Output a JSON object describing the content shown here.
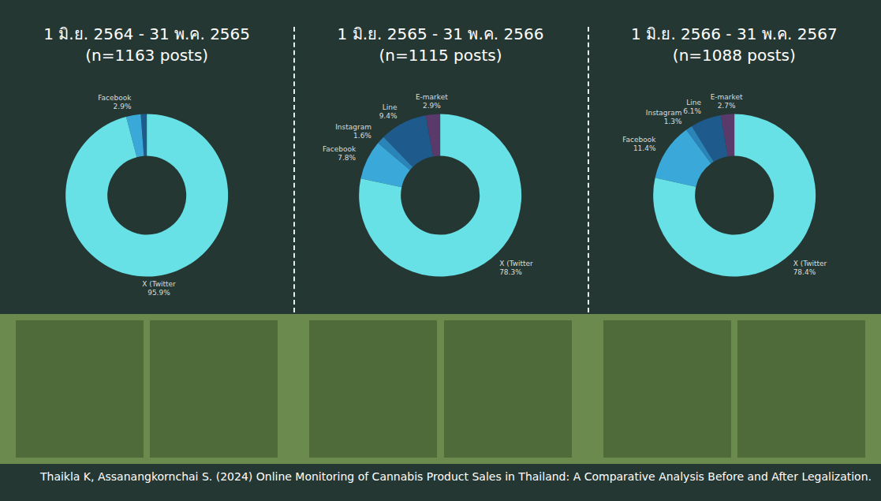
{
  "chart_data": [
    {
      "type": "donut",
      "title": "1 มิ.ย. 2564 - 31 พ.ค. 2565",
      "subtitle": "(n=1163 posts)",
      "categories": [
        null,
        "Facebook",
        "X (Twitter"
      ],
      "values": [
        1.2,
        2.9,
        95.9
      ],
      "value_labels": [
        null,
        "2.9%",
        "95.9%"
      ],
      "colors": [
        "#1f5a8c",
        "#3aa8d8",
        "#67e0e6"
      ],
      "data_labels": true
    },
    {
      "type": "donut",
      "title": "1 มิ.ย. 2565 - 31 พ.ค. 2566",
      "subtitle": "(n=1115 posts)",
      "categories": [
        "E-market",
        "Line",
        "Instagram",
        "Facebook",
        "X (Twitter"
      ],
      "values": [
        2.9,
        9.4,
        1.6,
        7.8,
        78.3
      ],
      "value_labels": [
        "2.9%",
        "9.4%",
        "1.6%",
        "7.8%",
        "78.3%"
      ],
      "colors": [
        "#5a3a6b",
        "#1f5a8c",
        "#2b84b8",
        "#3aa8d8",
        "#67e0e6"
      ],
      "data_labels": true
    },
    {
      "type": "donut",
      "title": "1 มิ.ย. 2566 - 31 พ.ค. 2567",
      "subtitle": "(n=1088 posts)",
      "categories": [
        "E-market",
        "Line",
        "Instagram",
        "Facebook",
        "X (Twitter"
      ],
      "values": [
        2.7,
        6.1,
        1.3,
        11.4,
        78.4
      ],
      "value_labels": [
        "2.7%",
        "6.1%",
        "1.3%",
        "11.4%",
        "78.4%"
      ],
      "colors": [
        "#5a3a6b",
        "#1f5a8c",
        "#2b84b8",
        "#3aa8d8",
        "#67e0e6"
      ],
      "data_labels": true
    }
  ],
  "caption": "Thaikla K, Assanangkornchai S. (2024) Online Monitoring of Cannabis Product Sales in Thailand: A Comparative Analysis Before and After Legalization."
}
